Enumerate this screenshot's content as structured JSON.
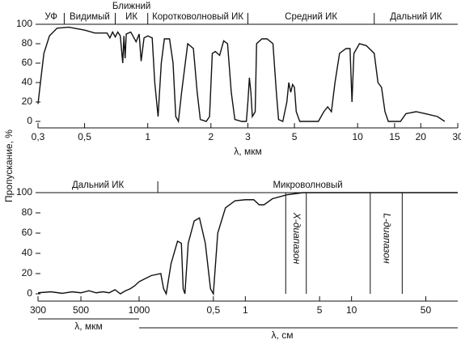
{
  "chart_data": [
    {
      "type": "line",
      "ylabel": "Пропускание, %",
      "xlabel": "λ, мкм",
      "xscale": "log",
      "xlim": [
        0.3,
        30
      ],
      "xticks": [
        {
          "value": 0.3,
          "label": "0,3"
        },
        {
          "value": 0.5,
          "label": "0,5"
        },
        1,
        2,
        3,
        5,
        10,
        15,
        20,
        30
      ],
      "ylim": [
        0,
        100
      ],
      "yticks": [
        0,
        20,
        40,
        60,
        80,
        100
      ],
      "regions": [
        "УФ",
        "Видимый",
        "Ближний ИК",
        "Коротковолновый ИК",
        "Средний ИК",
        "Дальний ИК"
      ],
      "region_bounds": [
        0.4,
        0.7,
        1,
        3,
        12
      ],
      "series": [
        {
          "color": "#111111",
          "x": [
            0.3,
            0.31,
            0.32,
            0.34,
            0.37,
            0.42,
            0.5,
            0.56,
            0.6,
            0.64,
            0.66,
            0.68,
            0.7,
            0.72,
            0.74,
            0.76,
            0.77,
            0.78,
            0.79,
            0.83,
            0.88,
            0.91,
            0.93,
            0.96,
            1,
            1.05,
            1.08,
            1.12,
            1.16,
            1.2,
            1.27,
            1.32,
            1.36,
            1.4,
            1.45,
            1.55,
            1.65,
            1.72,
            1.78,
            1.9,
            1.97,
            2.03,
            2.1,
            2.2,
            2.3,
            2.4,
            2.5,
            2.6,
            2.8,
            2.95,
            3,
            3.05,
            3.1,
            3.15,
            3.25,
            3.3,
            3.5,
            3.7,
            3.95,
            4.1,
            4.2,
            4.4,
            4.6,
            4.7,
            4.8,
            4.9,
            5,
            5.1,
            5.3,
            6.5,
            6.9,
            7.2,
            7.5,
            7.8,
            8.2,
            8.8,
            9.2,
            9.4,
            9.6,
            10.2,
            11,
            12,
            12.5,
            13,
            13.5,
            14,
            16,
            17,
            19,
            21,
            24,
            26
          ],
          "values": [
            18,
            45,
            70,
            88,
            96,
            97,
            94,
            91,
            91,
            91,
            86,
            92,
            87,
            92,
            88,
            60,
            88,
            65,
            90,
            92,
            82,
            90,
            62,
            86,
            88,
            86,
            40,
            5,
            60,
            85,
            85,
            60,
            5,
            0,
            30,
            80,
            75,
            30,
            2,
            0,
            5,
            70,
            72,
            68,
            83,
            80,
            30,
            2,
            0,
            0,
            20,
            45,
            30,
            5,
            10,
            80,
            85,
            85,
            80,
            30,
            2,
            0,
            20,
            40,
            30,
            38,
            35,
            10,
            0,
            0,
            10,
            15,
            10,
            40,
            70,
            75,
            75,
            20,
            70,
            80,
            78,
            70,
            40,
            35,
            10,
            0,
            0,
            8,
            10,
            8,
            5,
            0
          ]
        }
      ]
    },
    {
      "type": "line",
      "xscale": "log",
      "x2scale": "log",
      "xlabel": "λ, мкм",
      "xlim": [
        300,
        1000
      ],
      "xticks": [
        300,
        500,
        1000
      ],
      "x2label": "λ, см",
      "x2lim": [
        0.1,
        100
      ],
      "x2ticks": [
        {
          "value": 0.5,
          "label": "0,5"
        },
        1,
        5,
        10,
        50
      ],
      "ylim": [
        0,
        100
      ],
      "yticks": [
        0,
        20,
        40,
        60,
        80,
        100
      ],
      "regions": [
        "Дальний ИК",
        "Микроволновый"
      ],
      "region_bounds": [
        0.15
      ],
      "bands": [
        {
          "label": "X-диапазон",
          "range": [
            2.4,
            3.75
          ]
        },
        {
          "label": "L-диапазон",
          "range": [
            15,
            30
          ]
        }
      ],
      "series": [
        {
          "color": "#111111",
          "x": [
            300,
            350,
            400,
            450,
            500,
            550,
            600,
            650,
            700,
            750,
            800,
            850,
            900,
            950,
            1000
          ],
          "values": [
            1,
            2,
            0.5,
            2,
            1,
            3,
            1,
            2,
            1,
            4,
            0,
            3,
            5,
            8,
            12
          ]
        },
        {
          "color": "#111111",
          "axis": "x2",
          "x": [
            0.1,
            0.13,
            0.16,
            0.17,
            0.18,
            0.2,
            0.23,
            0.25,
            0.26,
            0.27,
            0.29,
            0.33,
            0.37,
            0.42,
            0.47,
            0.5,
            0.55,
            0.65,
            0.8,
            1,
            1.2,
            1.35,
            1.5,
            1.8,
            2.5,
            3.5,
            100
          ],
          "values": [
            12,
            18,
            20,
            5,
            0,
            30,
            52,
            50,
            5,
            0,
            50,
            72,
            75,
            50,
            5,
            0,
            60,
            85,
            92,
            93,
            93,
            88,
            88,
            94,
            98,
            100,
            100
          ]
        }
      ]
    }
  ]
}
